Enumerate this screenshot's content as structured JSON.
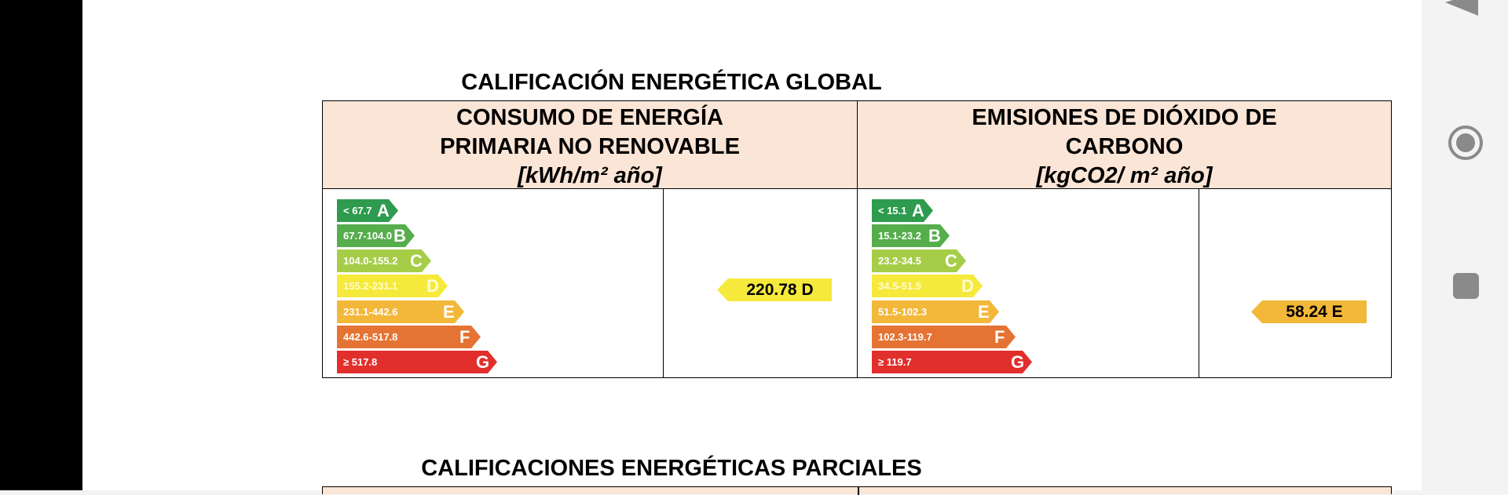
{
  "global": {
    "title": "CALIFICACIÓN ENERGÉTICA GLOBAL",
    "energy": {
      "header_line1": "CONSUMO DE ENERGÍA",
      "header_line2": "PRIMARIA NO RENOVABLE",
      "unit": "[kWh/m² año]",
      "scale": [
        {
          "range": "< 67.7",
          "letter": "A",
          "color": "#2e9b4f"
        },
        {
          "range": "67.7-104.0",
          "letter": "B",
          "color": "#55ad4c"
        },
        {
          "range": "104.0-155.2",
          "letter": "C",
          "color": "#a6cd48"
        },
        {
          "range": "155.2-231.1",
          "letter": "D",
          "color": "#f5ea3b"
        },
        {
          "range": "231.1-442.6",
          "letter": "E",
          "color": "#f3b73a"
        },
        {
          "range": "442.6-517.8",
          "letter": "F",
          "color": "#e57333"
        },
        {
          "range": "≥ 517.8",
          "letter": "G",
          "color": "#e12f2c"
        }
      ],
      "result": "220.78 D",
      "result_color": "#f5ea3b"
    },
    "emissions": {
      "header_line1": "EMISIONES DE DIÓXIDO DE",
      "header_line2": "CARBONO",
      "unit": "[kgCO2/ m² año]",
      "scale": [
        {
          "range": "< 15.1",
          "letter": "A",
          "color": "#2e9b4f"
        },
        {
          "range": "15.1-23.2",
          "letter": "B",
          "color": "#55ad4c"
        },
        {
          "range": "23.2-34.5",
          "letter": "C",
          "color": "#a6cd48"
        },
        {
          "range": "34.5-51.5",
          "letter": "D",
          "color": "#f5ea3b"
        },
        {
          "range": "51.5-102.3",
          "letter": "E",
          "color": "#f3b73a"
        },
        {
          "range": "102.3-119.7",
          "letter": "F",
          "color": "#e57333"
        },
        {
          "range": "≥ 119.7",
          "letter": "G",
          "color": "#e12f2c"
        }
      ],
      "result": "58.24 E",
      "result_color": "#f3b73a"
    }
  },
  "partial": {
    "title": "CALIFICACIONES ENERGÉTICAS PARCIALES"
  },
  "nav": {
    "back_icon": "back-triangle-icon",
    "home_icon": "home-circle-icon",
    "recent_icon": "recents-square-icon"
  }
}
